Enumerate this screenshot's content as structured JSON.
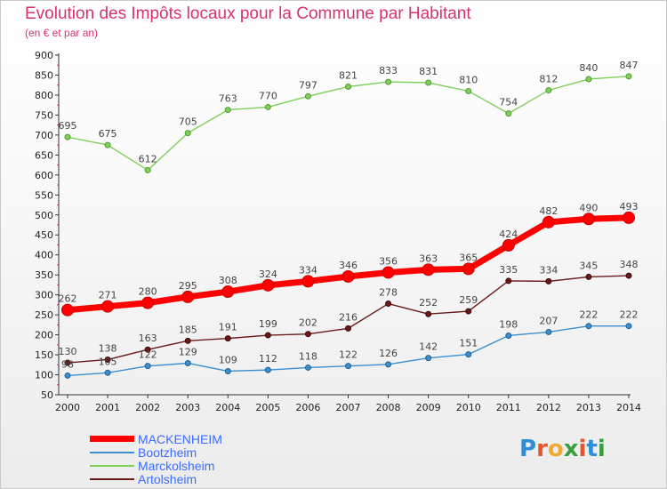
{
  "title": "Evolution des Impôts locaux pour la Commune par Habitant",
  "subtitle": "(en € et par an)",
  "logo": {
    "text": "Proxiti",
    "letters": [
      "P",
      "r",
      "o",
      "x",
      "i",
      "t",
      "i"
    ],
    "colors": [
      "#2e8fd6",
      "#e8532a",
      "#f0a830",
      "#3a9f3a",
      "#e8532a",
      "#2e8fd6",
      "#3a9f3a"
    ]
  },
  "chart_data": {
    "type": "line",
    "title": "Evolution des Impôts locaux pour la Commune par Habitant",
    "subtitle": "(en € et par an)",
    "xlabel": "",
    "ylabel": "",
    "x": [
      "2000",
      "2001",
      "2002",
      "2003",
      "2004",
      "2005",
      "2006",
      "2007",
      "2008",
      "2009",
      "2010",
      "2011",
      "2012",
      "2013",
      "2014"
    ],
    "ylim": [
      50,
      900
    ],
    "yticks": [
      50,
      100,
      150,
      200,
      250,
      300,
      350,
      400,
      450,
      500,
      550,
      600,
      650,
      700,
      750,
      800,
      850,
      900
    ],
    "grid": false,
    "legend_position": "bottom-left",
    "series": [
      {
        "name": "MACKENHEIM",
        "color": "#ff0000",
        "values": [
          262,
          271,
          280,
          295,
          308,
          324,
          334,
          346,
          356,
          363,
          365,
          424,
          482,
          490,
          493
        ]
      },
      {
        "name": "Bootzheim",
        "color": "#3b8fd0",
        "values": [
          98,
          105,
          122,
          129,
          109,
          112,
          118,
          122,
          126,
          142,
          151,
          198,
          207,
          222,
          222
        ]
      },
      {
        "name": "Marckolsheim",
        "color": "#7fd05a",
        "values": [
          695,
          675,
          612,
          705,
          763,
          770,
          797,
          821,
          833,
          831,
          810,
          754,
          812,
          840,
          847
        ]
      },
      {
        "name": "Artolsheim",
        "color": "#6b1a1a",
        "values": [
          130,
          138,
          163,
          185,
          191,
          199,
          202,
          216,
          278,
          252,
          259,
          335,
          334,
          345,
          348
        ]
      }
    ],
    "data_labels": [
      [
        "262",
        "271",
        "280",
        "295",
        "308",
        "324",
        "334",
        "346",
        "356",
        "363",
        "365",
        "424",
        "482",
        "490",
        "493"
      ],
      [
        "98",
        "105",
        "122",
        "129",
        "109",
        "112",
        "118",
        "122",
        "126",
        "142",
        "151",
        "198",
        "207",
        "222",
        "222"
      ],
      [
        "695",
        "675",
        "612",
        "705",
        "763",
        "770",
        "797",
        "821",
        "833",
        "831",
        "810",
        "754",
        "812",
        "840",
        "847"
      ],
      [
        "130",
        "138",
        "163",
        "185",
        "191",
        "199",
        "202",
        "216",
        "278",
        "252",
        "259",
        "335",
        "334",
        "345",
        "348"
      ]
    ]
  }
}
